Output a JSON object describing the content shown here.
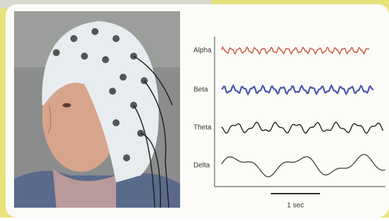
{
  "waves": {
    "labels": [
      "Alpha",
      "Beta",
      "Theta",
      "Delta"
    ],
    "scale_label": "1 sec"
  }
}
